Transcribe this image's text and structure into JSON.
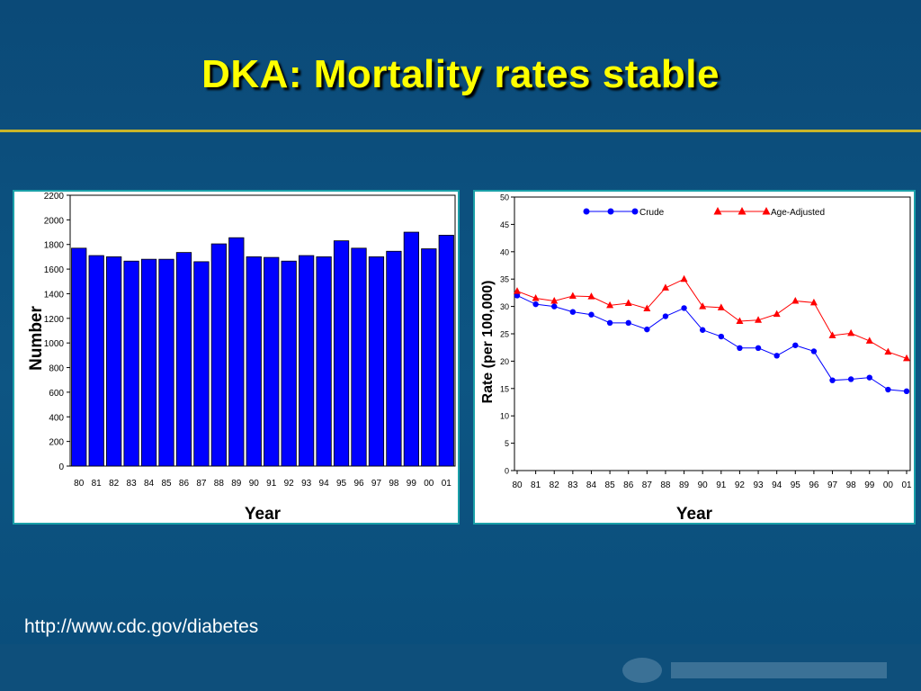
{
  "title": "DKA: Mortality rates stable",
  "source_url": "http://www.cdc.gov/diabetes",
  "colors": {
    "title": "#ffff00",
    "bars": "#0000ff",
    "crude": "#0000ff",
    "age_adjusted": "#ff0000"
  },
  "chart_data": [
    {
      "type": "bar",
      "categories": [
        "80",
        "81",
        "82",
        "83",
        "84",
        "85",
        "86",
        "87",
        "88",
        "89",
        "90",
        "91",
        "92",
        "93",
        "94",
        "95",
        "96",
        "97",
        "98",
        "99",
        "00",
        "01"
      ],
      "values": [
        1770,
        1710,
        1700,
        1665,
        1680,
        1680,
        1735,
        1660,
        1805,
        1855,
        1700,
        1695,
        1665,
        1710,
        1700,
        1830,
        1770,
        1700,
        1745,
        1900,
        1765,
        1875
      ],
      "xlabel": "Year",
      "ylabel": "Number",
      "ylim": [
        0,
        2200
      ],
      "yticks": [
        0,
        200,
        400,
        600,
        800,
        1000,
        1200,
        1400,
        1600,
        1800,
        2000,
        2200
      ],
      "grid": false
    },
    {
      "type": "line",
      "x": [
        "80",
        "81",
        "82",
        "83",
        "84",
        "85",
        "86",
        "87",
        "88",
        "89",
        "90",
        "91",
        "92",
        "93",
        "94",
        "95",
        "96",
        "97",
        "98",
        "99",
        "00",
        "01"
      ],
      "series": [
        {
          "name": "Crude",
          "marker": "circle",
          "values": [
            32.0,
            30.4,
            30.0,
            29.0,
            28.5,
            27.0,
            27.0,
            25.8,
            28.2,
            29.7,
            25.7,
            24.5,
            22.4,
            22.4,
            21.0,
            22.9,
            21.8,
            16.5,
            16.7,
            17.0,
            14.8,
            14.5
          ]
        },
        {
          "name": "Age-Adjusted",
          "marker": "triangle",
          "values": [
            32.8,
            31.5,
            31.0,
            31.9,
            31.8,
            30.2,
            30.6,
            29.6,
            33.4,
            35.0,
            30.0,
            29.8,
            27.3,
            27.5,
            28.6,
            31.0,
            30.7,
            24.7,
            25.1,
            23.7,
            21.7,
            20.5
          ]
        }
      ],
      "xlabel": "Year",
      "ylabel": "Rate (per 100,000)",
      "ylim": [
        0,
        50
      ],
      "yticks": [
        0,
        5,
        10,
        15,
        20,
        25,
        30,
        35,
        40,
        45,
        50
      ],
      "legend": "top",
      "grid": false
    }
  ]
}
